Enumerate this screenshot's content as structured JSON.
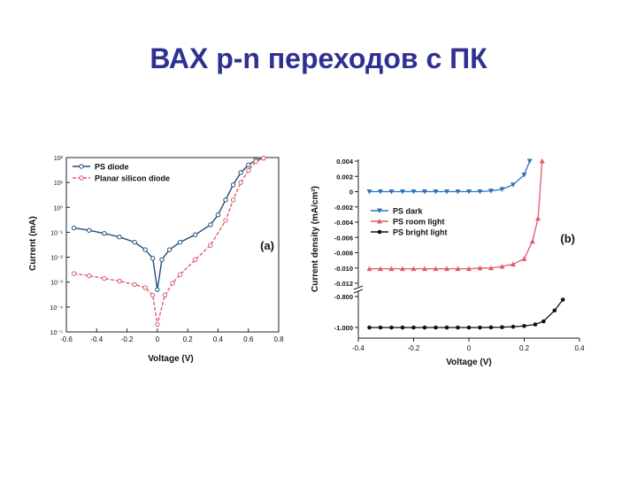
{
  "slide": {
    "title": "ВАХ p-n переходов с ПК"
  },
  "chart_data": [
    {
      "id": "a",
      "type": "line",
      "panel_label": "(a)",
      "xlabel": "Voltage (V)",
      "ylabel": "Current (mA)",
      "xlim": [
        -0.6,
        0.8
      ],
      "yscale": "log",
      "ylim": [
        1e-05,
        100
      ],
      "xticks": [
        "-0.6",
        "-0.4",
        "-0.2",
        "0",
        "0.2",
        "0.4",
        "0.6",
        "0.8"
      ],
      "xtick_values": [
        -0.6,
        -0.4,
        -0.2,
        0,
        0.2,
        0.4,
        0.6,
        0.8
      ],
      "yticks": [
        "10⁻⁵",
        "10⁻⁴",
        "10⁻³",
        "10⁻²",
        "10⁻¹",
        "10⁰",
        "10¹",
        "10²"
      ],
      "ytick_values": [
        1e-05,
        0.0001,
        0.001,
        0.01,
        0.1,
        1,
        10,
        100
      ],
      "legend_position": "top-left",
      "series": [
        {
          "name": "PS diode",
          "color": "#1f4e79",
          "marker": "open-circle",
          "x": [
            -0.55,
            -0.45,
            -0.35,
            -0.25,
            -0.15,
            -0.08,
            -0.03,
            0,
            0.03,
            0.08,
            0.15,
            0.25,
            0.35,
            0.4,
            0.45,
            0.5,
            0.55,
            0.6,
            0.65,
            0.7
          ],
          "y": [
            0.15,
            0.12,
            0.09,
            0.065,
            0.04,
            0.02,
            0.009,
            0.0005,
            0.008,
            0.02,
            0.04,
            0.08,
            0.2,
            0.5,
            2,
            8,
            25,
            50,
            80,
            95
          ]
        },
        {
          "name": "Planar silicon diode",
          "color": "#e05a6a",
          "marker": "open-circle",
          "x": [
            -0.55,
            -0.45,
            -0.35,
            -0.25,
            -0.15,
            -0.08,
            -0.03,
            0,
            0.05,
            0.1,
            0.15,
            0.25,
            0.35,
            0.45,
            0.5,
            0.55,
            0.6,
            0.65,
            0.7
          ],
          "y": [
            0.0022,
            0.0018,
            0.0014,
            0.0011,
            0.0008,
            0.0006,
            0.0003,
            2e-05,
            0.0003,
            0.0009,
            0.002,
            0.008,
            0.03,
            0.3,
            2,
            10,
            30,
            70,
            95
          ]
        }
      ]
    },
    {
      "id": "b",
      "type": "line",
      "panel_label": "(b)",
      "xlabel": "Voltage (V)",
      "ylabel": "Current density (mA/cm²)",
      "xlim": [
        -0.4,
        0.4
      ],
      "xticks": [
        "-0.4",
        "-0.2",
        "0",
        "0.2",
        "0.4"
      ],
      "xtick_values": [
        -0.4,
        -0.2,
        0,
        0.2,
        0.4
      ],
      "upper_ylim": [
        -0.012,
        0.004
      ],
      "upper_yticks": [
        "0.004",
        "0.002",
        "0",
        "-0.002",
        "-0.004",
        "-0.006",
        "-0.008",
        "-0.010",
        "-0.012"
      ],
      "upper_ytick_values": [
        0.004,
        0.002,
        0,
        -0.002,
        -0.004,
        -0.006,
        -0.008,
        -0.01,
        -0.012
      ],
      "lower_ylim": [
        -1.0,
        -0.8
      ],
      "lower_yticks": [
        "-0.800",
        "-1.000"
      ],
      "lower_ytick_values": [
        -0.8,
        -1.0
      ],
      "axis_break": true,
      "legend_position": "center-left",
      "series": [
        {
          "name": "PS dark",
          "color": "#2e75b6",
          "marker": "triangle-down",
          "axis": "upper",
          "x": [
            -0.36,
            -0.32,
            -0.28,
            -0.24,
            -0.2,
            -0.16,
            -0.12,
            -0.08,
            -0.04,
            0,
            0.04,
            0.08,
            0.12,
            0.16,
            0.2,
            0.22
          ],
          "y": [
            0,
            0,
            0,
            0,
            0,
            0,
            0,
            0,
            0,
            0,
            0,
            0.0001,
            0.0003,
            0.0009,
            0.0022,
            0.004
          ]
        },
        {
          "name": "PS room light",
          "color": "#e05a6a",
          "marker": "triangle-up",
          "axis": "upper",
          "x": [
            -0.36,
            -0.32,
            -0.28,
            -0.24,
            -0.2,
            -0.16,
            -0.12,
            -0.08,
            -0.04,
            0,
            0.04,
            0.08,
            0.12,
            0.16,
            0.2,
            0.23,
            0.25,
            0.265
          ],
          "y": [
            -0.0101,
            -0.0101,
            -0.0101,
            -0.0101,
            -0.0101,
            -0.0101,
            -0.0101,
            -0.0101,
            -0.0101,
            -0.0101,
            -0.01,
            -0.01,
            -0.0098,
            -0.0095,
            -0.0088,
            -0.0065,
            -0.0035,
            0.004
          ]
        },
        {
          "name": "PS bright light",
          "color": "#111111",
          "marker": "circle",
          "axis": "lower",
          "x": [
            -0.36,
            -0.32,
            -0.28,
            -0.24,
            -0.2,
            -0.16,
            -0.12,
            -0.08,
            -0.04,
            0,
            0.04,
            0.08,
            0.12,
            0.16,
            0.2,
            0.24,
            0.27,
            0.31,
            0.34
          ],
          "y": [
            -1.0,
            -1.0,
            -1.0,
            -1.0,
            -1.0,
            -1.0,
            -1.0,
            -1.0,
            -1.0,
            -1.0,
            -1.0,
            -0.999,
            -0.998,
            -0.995,
            -0.99,
            -0.98,
            -0.96,
            -0.89,
            -0.82
          ]
        }
      ]
    }
  ]
}
